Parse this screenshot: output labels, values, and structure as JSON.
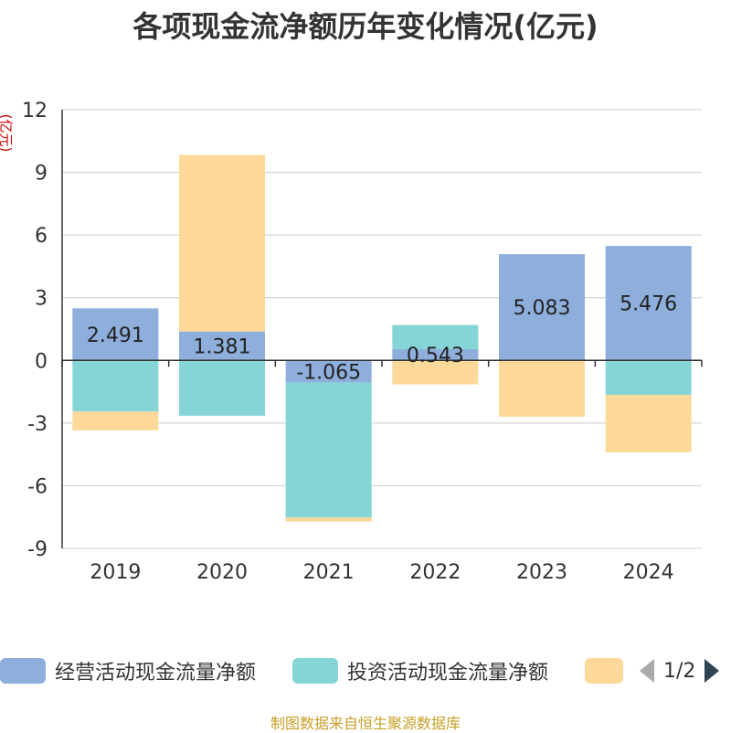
{
  "chart_data": {
    "type": "bar",
    "stacked": true,
    "title": "各项现金流净额历年变化情况(亿元)",
    "ylabel": "(亿元)",
    "xlabel": "",
    "ylim": [
      -9,
      12
    ],
    "yticks": [
      12,
      9,
      6,
      3,
      0,
      -3,
      -6,
      -9
    ],
    "categories": [
      "2019",
      "2020",
      "2021",
      "2022",
      "2023",
      "2024"
    ],
    "series": [
      {
        "name": "经营活动现金流量净额",
        "color": "#8eaedb",
        "values": [
          2.491,
          1.381,
          -1.065,
          0.543,
          5.083,
          5.476
        ],
        "labels": [
          "2.491",
          "1.381",
          "-1.065",
          "0.543",
          "5.083",
          "5.476"
        ]
      },
      {
        "name": "投资活动现金流量净额",
        "color": "#85d5d6",
        "values": [
          -2.45,
          -2.65,
          -6.45,
          1.15,
          0,
          -1.65
        ]
      },
      {
        "name": "",
        "color": "#fdd899",
        "values": [
          -0.9,
          8.45,
          -0.2,
          -1.15,
          -2.7,
          -2.75
        ]
      }
    ],
    "grid": true,
    "legend_position": "bottom"
  },
  "legend": {
    "items": [
      {
        "label": "经营活动现金流量净额",
        "color": "#8eaedb"
      },
      {
        "label": "投资活动现金流量净额",
        "color": "#85d5d6"
      },
      {
        "label": "",
        "color": "#fdd899"
      }
    ],
    "pager_text": "1/2"
  },
  "source": "制图数据来自恒生聚源数据库"
}
